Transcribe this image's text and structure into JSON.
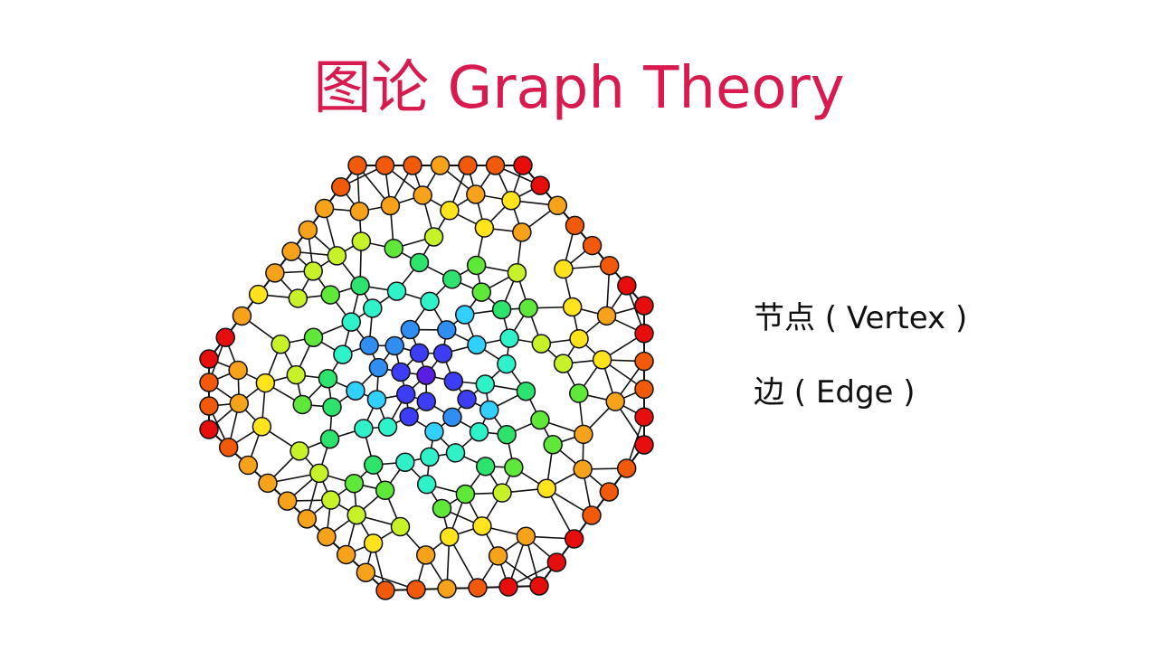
{
  "title": "图论 Graph Theory",
  "legend": {
    "vertex_label": "节点 ( Vertex )",
    "edge_label": "边 ( Edge )"
  },
  "colors": {
    "title": "#d81b4f",
    "edge": "#111111",
    "node_stroke": "#111111",
    "node_palette": [
      "#e60d0d",
      "#f05a0a",
      "#f7a21b",
      "#ffe31c",
      "#c7f22a",
      "#5fe83a",
      "#2ee26e",
      "#2ff2c8",
      "#31d0ff",
      "#2f8ef0",
      "#3d3df5",
      "#5a1ee0"
    ]
  }
}
